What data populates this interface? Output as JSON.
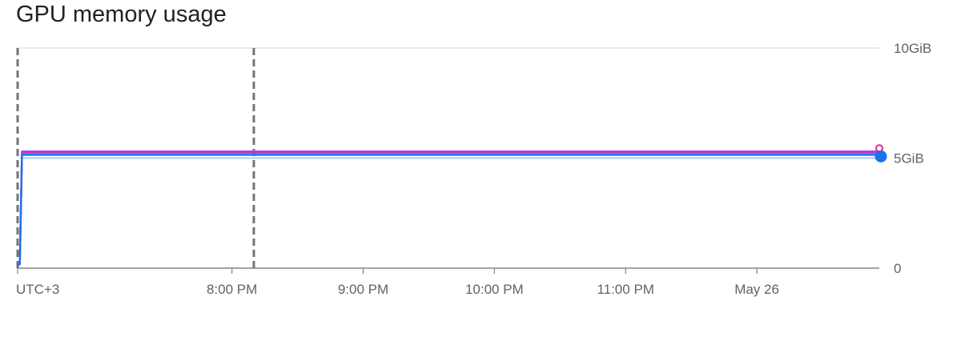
{
  "title": "GPU memory usage",
  "chart_data": {
    "type": "line",
    "title": "GPU memory usage",
    "xlabel": "",
    "ylabel": "",
    "timezone_label": "UTC+3",
    "x_ticks": [
      {
        "label": "8:00 PM",
        "t": 60
      },
      {
        "label": "9:00 PM",
        "t": 120
      },
      {
        "label": "10:00 PM",
        "t": 180
      },
      {
        "label": "11:00 PM",
        "t": 240
      },
      {
        "label": "May 26",
        "t": 300
      }
    ],
    "xlim": [
      -38,
      356
    ],
    "y_ticks": [
      {
        "label": "0",
        "value": 0
      },
      {
        "label": "5GiB",
        "value": 5
      },
      {
        "label": "10GiB",
        "value": 10
      }
    ],
    "ylim": [
      0,
      10
    ],
    "series": [
      {
        "color": "#a142f4",
        "x": [
          -38,
          -37,
          -36,
          356
        ],
        "y": [
          0.2,
          0.3,
          5.3,
          5.3
        ]
      },
      {
        "color": "#e52592",
        "x": [
          -38,
          -37,
          -36,
          356
        ],
        "y": [
          0.1,
          0.2,
          5.25,
          5.25
        ]
      },
      {
        "color": "#1a73e8",
        "x": [
          -38,
          -37,
          -36,
          356
        ],
        "y": [
          0.1,
          0.2,
          5.15,
          5.15
        ]
      },
      {
        "color": "#aecbfa",
        "x": [
          -38,
          -37,
          -36,
          356
        ],
        "y": [
          0.1,
          0.15,
          5.0,
          5.0
        ]
      }
    ],
    "markers": [
      {
        "x": -38,
        "style": "dashed"
      },
      {
        "x": 70,
        "style": "dashed"
      }
    ],
    "grid": true,
    "legend": "none"
  }
}
